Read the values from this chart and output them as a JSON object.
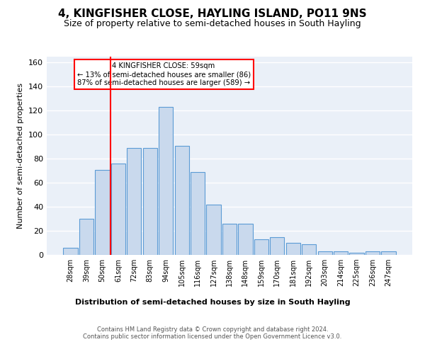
{
  "title": "4, KINGFISHER CLOSE, HAYLING ISLAND, PO11 9NS",
  "subtitle": "Size of property relative to semi-detached houses in South Hayling",
  "xlabel": "Distribution of semi-detached houses by size in South Hayling",
  "ylabel": "Number of semi-detached properties",
  "categories": [
    "28sqm",
    "39sqm",
    "50sqm",
    "61sqm",
    "72sqm",
    "83sqm",
    "94sqm",
    "105sqm",
    "116sqm",
    "127sqm",
    "138sqm",
    "148sqm",
    "159sqm",
    "170sqm",
    "181sqm",
    "192sqm",
    "203sqm",
    "214sqm",
    "225sqm",
    "236sqm",
    "247sqm"
  ],
  "values": [
    6,
    30,
    71,
    76,
    89,
    89,
    123,
    91,
    69,
    42,
    26,
    26,
    13,
    15,
    10,
    9,
    3,
    3,
    2,
    3,
    3
  ],
  "bar_color": "#c9d9ed",
  "bar_edge_color": "#5b9bd5",
  "vline_color": "red",
  "annotation_title": "4 KINGFISHER CLOSE: 59sqm",
  "annotation_line1": "← 13% of semi-detached houses are smaller (86)",
  "annotation_line2": "87% of semi-detached houses are larger (589) →",
  "annotation_box_color": "white",
  "annotation_box_edge": "red",
  "ylim": [
    0,
    165
  ],
  "yticks": [
    0,
    20,
    40,
    60,
    80,
    100,
    120,
    140,
    160
  ],
  "footer1": "Contains HM Land Registry data © Crown copyright and database right 2024.",
  "footer2": "Contains public sector information licensed under the Open Government Licence v3.0.",
  "background_color": "#eaf0f8",
  "title_fontsize": 11,
  "subtitle_fontsize": 9
}
